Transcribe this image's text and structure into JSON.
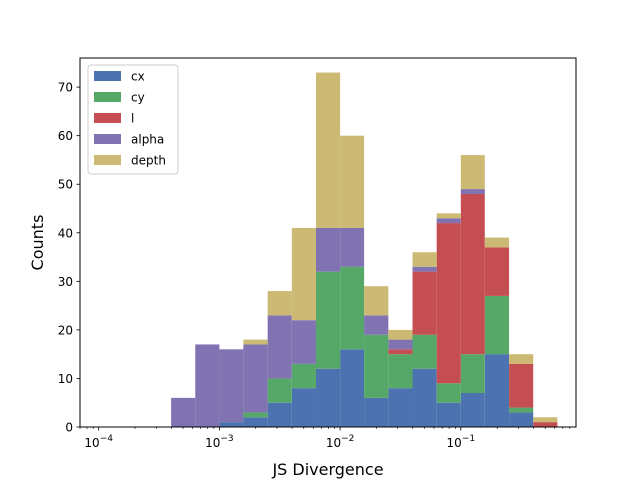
{
  "chart_data": {
    "type": "bar",
    "stacked": true,
    "xscale": "log",
    "xlabel": "JS Divergence",
    "ylabel": "Counts",
    "xlim": [
      7e-05,
      0.9
    ],
    "ylim": [
      0,
      76
    ],
    "legend_position": "top-left",
    "x_ticks": [
      {
        "value": 0.0001,
        "base": "10",
        "exp": "−4"
      },
      {
        "value": 0.001,
        "base": "10",
        "exp": "−3"
      },
      {
        "value": 0.01,
        "base": "10",
        "exp": "−2"
      },
      {
        "value": 0.1,
        "base": "10",
        "exp": "−1"
      }
    ],
    "y_ticks": [
      0,
      10,
      20,
      30,
      40,
      50,
      60,
      70
    ],
    "bin_edges": [
      0.0001,
      0.000158,
      0.000251,
      0.000398,
      0.000631,
      0.001,
      0.00158,
      0.00251,
      0.00398,
      0.00631,
      0.01,
      0.0158,
      0.0251,
      0.0398,
      0.0631,
      0.1,
      0.158,
      0.251,
      0.398,
      0.631
    ],
    "series": [
      {
        "name": "cx",
        "color": "#4c72b0",
        "values": [
          0,
          0,
          0,
          0,
          0,
          1,
          2,
          5,
          8,
          12,
          16,
          6,
          8,
          12,
          5,
          7,
          15,
          3,
          0
        ]
      },
      {
        "name": "cy",
        "color": "#55a868",
        "values": [
          0,
          0,
          0,
          0,
          0,
          0,
          1,
          5,
          5,
          20,
          17,
          13,
          7,
          7,
          4,
          8,
          12,
          1,
          0
        ]
      },
      {
        "name": "l",
        "color": "#c44e52",
        "values": [
          0,
          0,
          0,
          0,
          0,
          0,
          0,
          0,
          0,
          0,
          0,
          0,
          1,
          13,
          33,
          33,
          10,
          9,
          1
        ]
      },
      {
        "name": "alpha",
        "color": "#8172b2",
        "values": [
          0,
          0,
          0,
          6,
          17,
          15,
          14,
          13,
          9,
          9,
          8,
          4,
          2,
          1,
          1,
          1,
          0,
          0,
          0
        ]
      },
      {
        "name": "depth",
        "color": "#ccb974",
        "values": [
          0,
          0,
          0,
          0,
          0,
          0,
          1,
          5,
          19,
          32,
          19,
          6,
          2,
          3,
          1,
          7,
          2,
          2,
          1
        ]
      }
    ]
  }
}
